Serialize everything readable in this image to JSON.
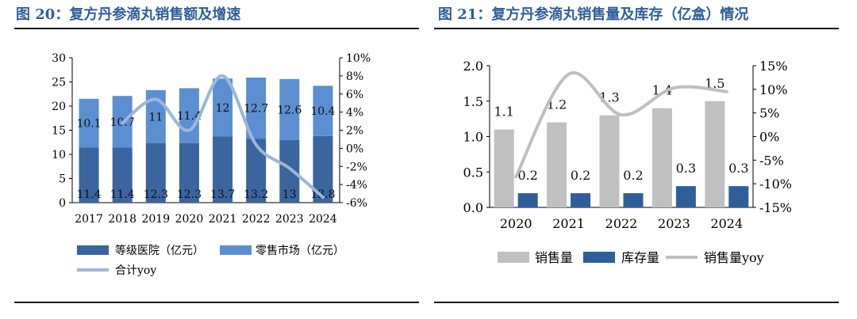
{
  "left": {
    "title": "图 20：复方丹参滴丸销售额及增速",
    "chart_data": {
      "type": "bar",
      "stacked": true,
      "categories": [
        "2017",
        "2018",
        "2019",
        "2020",
        "2021",
        "2022",
        "2023",
        "2024"
      ],
      "series": [
        {
          "name": "等级医院（亿元）",
          "values": [
            11.4,
            11.4,
            12.3,
            12.3,
            13.7,
            13.2,
            13.0,
            13.8
          ],
          "color": "#3a659e"
        },
        {
          "name": "零售市场（亿元）",
          "values": [
            10.1,
            10.7,
            11.0,
            11.4,
            12.0,
            12.7,
            12.6,
            10.4
          ],
          "color": "#5b8fd1"
        }
      ],
      "line": {
        "name": "合计yoy",
        "values": [
          null,
          2.8,
          5.4,
          2.0,
          8.0,
          0.4,
          -2.2,
          -5.4
        ],
        "color": "#9db6d9",
        "axis": "right"
      },
      "ylim": [
        0,
        30
      ],
      "yticks": [
        "0",
        "5",
        "10",
        "15",
        "20",
        "25",
        "30"
      ],
      "y2lim": [
        -6,
        10
      ],
      "y2ticks": [
        "-6%",
        "-4%",
        "-2%",
        "0%",
        "2%",
        "4%",
        "6%",
        "8%",
        "10%"
      ]
    }
  },
  "right": {
    "title": "图 21：复方丹参滴丸销售量及库存（亿盒）情况",
    "chart_data": {
      "type": "bar",
      "categories": [
        "2020",
        "2021",
        "2022",
        "2023",
        "2024"
      ],
      "series": [
        {
          "name": "销售量",
          "values": [
            1.1,
            1.2,
            1.3,
            1.4,
            1.5
          ],
          "color": "#c0c0c0"
        },
        {
          "name": "库存量",
          "values": [
            0.2,
            0.2,
            0.2,
            0.3,
            0.3
          ],
          "color": "#2e5f9a"
        }
      ],
      "line": {
        "name": "销售量yoy",
        "values": [
          -8.5,
          13.2,
          4.6,
          10.3,
          9.5
        ],
        "color": "#bfbfbf",
        "axis": "right"
      },
      "ylim": [
        0,
        2.0
      ],
      "yticks": [
        "0.0",
        "0.5",
        "1.0",
        "1.5",
        "2.0"
      ],
      "y2lim": [
        -15,
        15
      ],
      "y2ticks": [
        "-15%",
        "-10%",
        "-5%",
        "0%",
        "5%",
        "10%",
        "15%"
      ]
    }
  }
}
